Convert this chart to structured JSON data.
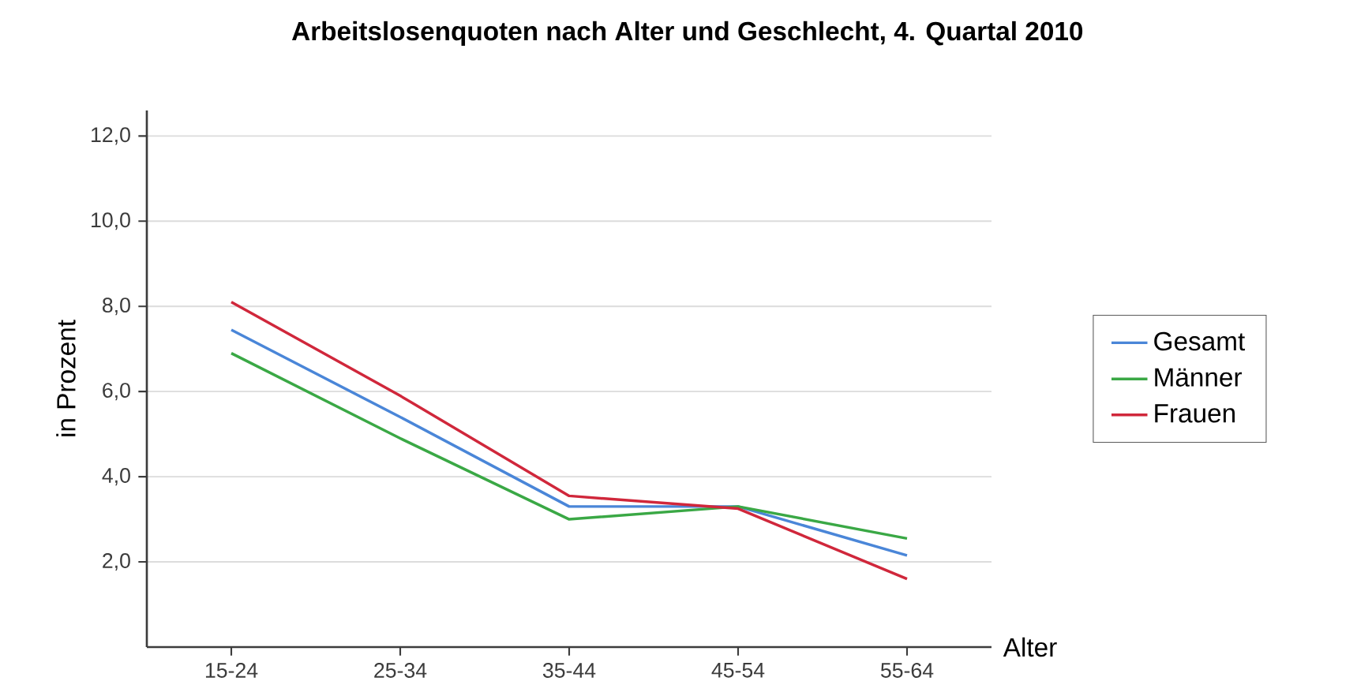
{
  "chart_data": {
    "type": "line",
    "title": "Arbeitslosenquoten nach Alter und Geschlecht, 4. Quartal 2010",
    "xlabel": "Alter",
    "ylabel": "in Prozent",
    "categories": [
      "15-24",
      "25-34",
      "35-44",
      "45-54",
      "55-64"
    ],
    "series": [
      {
        "name": "Gesamt",
        "color": "#4a86d8",
        "values": [
          7.45,
          5.4,
          3.3,
          3.3,
          2.15
        ]
      },
      {
        "name": "Männer",
        "color": "#3aa845",
        "values": [
          6.9,
          4.9,
          3.0,
          3.3,
          2.55
        ]
      },
      {
        "name": "Frauen",
        "color": "#d0273b",
        "values": [
          8.1,
          5.9,
          3.55,
          3.25,
          1.6
        ]
      }
    ],
    "ylim": [
      0,
      12.6
    ],
    "yticks": [
      {
        "value": 2,
        "label": "2,0"
      },
      {
        "value": 4,
        "label": "4,0"
      },
      {
        "value": 6,
        "label": "6,0"
      },
      {
        "value": 8,
        "label": "8,0"
      },
      {
        "value": 10,
        "label": "10,0"
      },
      {
        "value": 12,
        "label": "12,0"
      }
    ],
    "grid": "y",
    "legend": "right",
    "marker": "none",
    "line_style": "solid"
  }
}
